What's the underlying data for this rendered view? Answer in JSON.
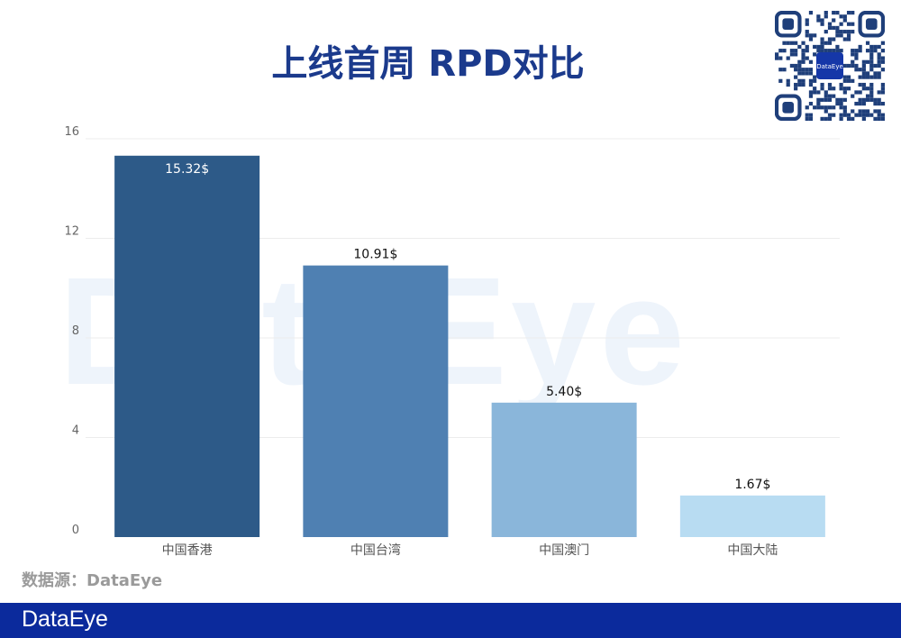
{
  "header": {
    "title": "上线首周 RPD对比"
  },
  "qr_code": {
    "center_label": "DataEye"
  },
  "watermark": "DataEye",
  "chart_data": {
    "type": "bar",
    "title": "上线首周 RPD对比",
    "categories": [
      "中国香港",
      "中国台湾",
      "中国澳门",
      "中国大陆"
    ],
    "values": [
      15.32,
      10.91,
      5.4,
      1.67
    ],
    "data_labels": [
      "15.32$",
      "10.91$",
      "5.40$",
      "1.67$"
    ],
    "colors": [
      "#2d5a88",
      "#4f80b2",
      "#8ab6da",
      "#b8dcf2"
    ],
    "yticks": [
      0,
      4,
      8,
      12,
      16
    ],
    "ylim": [
      0,
      16
    ],
    "grid": true,
    "xlabel": "",
    "ylabel": ""
  },
  "source": "数据源：DataEye",
  "footer": {
    "logo": "DataEye",
    "color": "#0b2a9c"
  }
}
